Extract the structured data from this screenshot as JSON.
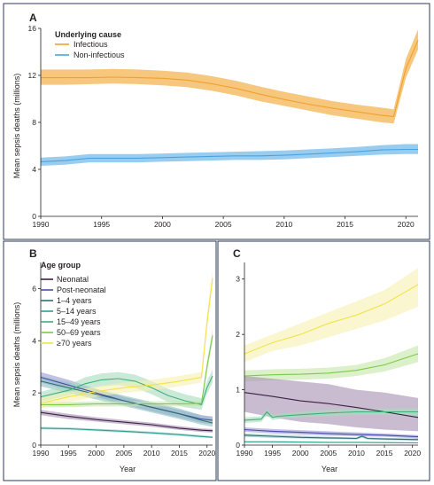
{
  "figure": {
    "panel_border_color": "#2b3a55",
    "tick_color": "#231f20"
  },
  "chart_data": [
    {
      "type": "area",
      "panel_label": "A",
      "title": "",
      "xlabel": "",
      "ylabel": "Mean sepsis deaths (millions)",
      "xlim": [
        1990,
        2021
      ],
      "ylim": [
        0,
        16
      ],
      "xticks": [
        1990,
        1995,
        2000,
        2005,
        2010,
        2015,
        2020
      ],
      "yticks": [
        0,
        4,
        8,
        12,
        16
      ],
      "legend": {
        "title": "Underlying cause",
        "placement": "top-left"
      },
      "series": [
        {
          "name": "Infectious",
          "color": "#f0a030",
          "band_color": "#f5c16e",
          "x": [
            1990,
            1992,
            1994,
            1996,
            1998,
            2000,
            2002,
            2004,
            2006,
            2008,
            2010,
            2012,
            2014,
            2016,
            2018,
            2019,
            2020,
            2021
          ],
          "values": [
            11.8,
            11.8,
            11.8,
            11.85,
            11.8,
            11.75,
            11.6,
            11.3,
            10.9,
            10.4,
            9.95,
            9.55,
            9.2,
            8.9,
            8.6,
            8.5,
            12.6,
            15.0
          ],
          "lower": [
            11.2,
            11.2,
            11.25,
            11.3,
            11.25,
            11.15,
            11.0,
            10.7,
            10.3,
            9.8,
            9.4,
            9.0,
            8.6,
            8.3,
            8.0,
            7.9,
            11.8,
            14.2
          ],
          "upper": [
            12.5,
            12.5,
            12.5,
            12.55,
            12.5,
            12.4,
            12.25,
            11.95,
            11.55,
            11.05,
            10.6,
            10.2,
            9.8,
            9.5,
            9.25,
            9.1,
            13.4,
            15.9
          ]
        },
        {
          "name": "Non-infectious",
          "color": "#4aa3df",
          "band_color": "#8ec8ee",
          "x": [
            1990,
            1992,
            1994,
            1996,
            1998,
            2000,
            2002,
            2004,
            2006,
            2008,
            2010,
            2012,
            2014,
            2016,
            2018,
            2020,
            2021
          ],
          "values": [
            4.65,
            4.75,
            4.95,
            4.95,
            4.95,
            5.0,
            5.05,
            5.1,
            5.15,
            5.15,
            5.2,
            5.3,
            5.4,
            5.5,
            5.65,
            5.7,
            5.7
          ],
          "lower": [
            4.3,
            4.4,
            4.6,
            4.6,
            4.6,
            4.65,
            4.7,
            4.75,
            4.8,
            4.8,
            4.85,
            4.95,
            5.05,
            5.15,
            5.25,
            5.3,
            5.3
          ],
          "upper": [
            5.0,
            5.1,
            5.3,
            5.3,
            5.3,
            5.35,
            5.4,
            5.45,
            5.5,
            5.55,
            5.6,
            5.7,
            5.8,
            5.9,
            6.05,
            6.15,
            6.15
          ]
        }
      ]
    },
    {
      "type": "area",
      "panel_label": "B",
      "title": "",
      "xlabel": "Year",
      "ylabel": "Mean sepsis deaths (millions)",
      "xlim": [
        1990,
        2021
      ],
      "ylim": [
        0,
        7
      ],
      "xticks": [
        1990,
        1995,
        2000,
        2005,
        2010,
        2015,
        2020
      ],
      "yticks": [
        0,
        2,
        4,
        6
      ],
      "legend": {
        "title": "Age group",
        "placement": "top-left"
      },
      "series": [
        {
          "name": "Neonatal",
          "color": "#3d1f45",
          "band_color": "#a58fb0",
          "x": [
            1990,
            1995,
            2000,
            2005,
            2010,
            2015,
            2019,
            2021
          ],
          "values": [
            1.25,
            1.1,
            0.98,
            0.88,
            0.78,
            0.65,
            0.57,
            0.55
          ],
          "lower": [
            1.15,
            1.0,
            0.9,
            0.8,
            0.7,
            0.58,
            0.5,
            0.48
          ],
          "upper": [
            1.35,
            1.2,
            1.07,
            0.96,
            0.86,
            0.73,
            0.64,
            0.62
          ]
        },
        {
          "name": "Post-neonatal",
          "color": "#4b4ba8",
          "band_color": "#9a9ad6",
          "x": [
            1990,
            1995,
            2000,
            2005,
            2010,
            2015,
            2019,
            2021
          ],
          "values": [
            2.6,
            2.3,
            2.0,
            1.7,
            1.45,
            1.2,
            1.0,
            0.95
          ],
          "lower": [
            2.4,
            2.1,
            1.85,
            1.55,
            1.3,
            1.05,
            0.85,
            0.8
          ],
          "upper": [
            2.8,
            2.5,
            2.15,
            1.85,
            1.6,
            1.35,
            1.15,
            1.1
          ]
        },
        {
          "name": "1–4 years",
          "color": "#2f6f73",
          "band_color": "#8cbfc1",
          "x": [
            1990,
            1995,
            2000,
            2005,
            2010,
            2015,
            2019,
            2021
          ],
          "values": [
            2.45,
            2.2,
            1.95,
            1.7,
            1.45,
            1.2,
            0.95,
            0.85
          ],
          "lower": [
            2.25,
            2.0,
            1.75,
            1.5,
            1.25,
            1.0,
            0.78,
            0.7
          ],
          "upper": [
            2.65,
            2.4,
            2.15,
            1.9,
            1.65,
            1.4,
            1.15,
            1.05
          ]
        },
        {
          "name": "5–14 years",
          "color": "#2e9e8f",
          "band_color": "#92d1c8",
          "x": [
            1990,
            1995,
            2000,
            2005,
            2010,
            2015,
            2019,
            2021
          ],
          "values": [
            0.65,
            0.63,
            0.58,
            0.53,
            0.47,
            0.4,
            0.33,
            0.3
          ],
          "lower": [
            0.6,
            0.58,
            0.53,
            0.48,
            0.42,
            0.35,
            0.29,
            0.26
          ],
          "upper": [
            0.7,
            0.68,
            0.63,
            0.58,
            0.52,
            0.45,
            0.38,
            0.34
          ]
        },
        {
          "name": "15–49 years",
          "color": "#3db07a",
          "band_color": "#a6dcbc",
          "x": [
            1990,
            1995,
            1998,
            2001,
            2004,
            2007,
            2010,
            2013,
            2016,
            2019,
            2020,
            2021
          ],
          "values": [
            1.85,
            2.1,
            2.35,
            2.5,
            2.55,
            2.45,
            2.2,
            1.9,
            1.7,
            1.55,
            2.2,
            2.65
          ],
          "lower": [
            1.65,
            1.9,
            2.1,
            2.25,
            2.3,
            2.2,
            1.95,
            1.65,
            1.45,
            1.35,
            1.95,
            2.4
          ],
          "upper": [
            2.05,
            2.3,
            2.6,
            2.75,
            2.8,
            2.7,
            2.45,
            2.15,
            1.95,
            1.8,
            2.45,
            2.9
          ]
        },
        {
          "name": "50–69 years",
          "color": "#7cc94a",
          "band_color": "#c4e6a8",
          "x": [
            1990,
            1995,
            2000,
            2005,
            2010,
            2015,
            2019,
            2020,
            2021
          ],
          "values": [
            1.55,
            1.55,
            1.58,
            1.58,
            1.58,
            1.58,
            1.6,
            3.0,
            4.2
          ],
          "lower": [
            1.45,
            1.45,
            1.48,
            1.48,
            1.48,
            1.48,
            1.5,
            2.8,
            3.95
          ],
          "upper": [
            1.65,
            1.65,
            1.68,
            1.68,
            1.68,
            1.68,
            1.7,
            3.2,
            4.45
          ]
        },
        {
          "name": "≥70 years",
          "color": "#f2e34a",
          "band_color": "#f7f0b0",
          "x": [
            1990,
            1995,
            2000,
            2005,
            2010,
            2015,
            2019,
            2020,
            2021
          ],
          "values": [
            1.6,
            1.85,
            2.05,
            2.2,
            2.3,
            2.45,
            2.6,
            4.7,
            6.4
          ],
          "lower": [
            1.4,
            1.65,
            1.85,
            2.0,
            2.1,
            2.25,
            2.4,
            4.4,
            6.1
          ],
          "upper": [
            1.8,
            2.05,
            2.25,
            2.4,
            2.5,
            2.65,
            2.8,
            5.0,
            6.7
          ]
        }
      ]
    },
    {
      "type": "area",
      "panel_label": "C",
      "title": "",
      "xlabel": "Year",
      "ylabel": "",
      "xlim": [
        1990,
        2021
      ],
      "ylim": [
        0,
        3.3
      ],
      "xticks": [
        1990,
        1995,
        2000,
        2005,
        2010,
        2015,
        2020
      ],
      "yticks": [
        0,
        1,
        2,
        3
      ],
      "series": [
        {
          "name": "≥70 years",
          "color": "#f2e34a",
          "band_color": "#f7f0b0",
          "x": [
            1990,
            1995,
            2000,
            2005,
            2010,
            2015,
            2021
          ],
          "values": [
            1.65,
            1.85,
            2.0,
            2.2,
            2.35,
            2.55,
            2.9
          ],
          "lower": [
            1.5,
            1.7,
            1.8,
            1.95,
            2.1,
            2.25,
            2.5
          ],
          "upper": [
            1.8,
            2.0,
            2.2,
            2.4,
            2.6,
            2.8,
            3.2
          ]
        },
        {
          "name": "50–69 years",
          "color": "#7cc94a",
          "band_color": "#c4e6a8",
          "x": [
            1990,
            1995,
            2000,
            2005,
            2010,
            2015,
            2021
          ],
          "values": [
            1.25,
            1.27,
            1.28,
            1.3,
            1.35,
            1.45,
            1.65
          ],
          "lower": [
            1.15,
            1.17,
            1.18,
            1.2,
            1.25,
            1.33,
            1.5
          ],
          "upper": [
            1.35,
            1.37,
            1.38,
            1.4,
            1.45,
            1.57,
            1.8
          ]
        },
        {
          "name": "Neonatal",
          "color": "#3d1f45",
          "band_color": "#a58fb0",
          "x": [
            1990,
            1995,
            2000,
            2005,
            2010,
            2015,
            2021
          ],
          "values": [
            0.95,
            0.88,
            0.8,
            0.75,
            0.68,
            0.6,
            0.5
          ],
          "lower": [
            0.6,
            0.5,
            0.42,
            0.38,
            0.32,
            0.28,
            0.25
          ],
          "upper": [
            1.25,
            1.2,
            1.15,
            1.1,
            1.0,
            0.95,
            0.85
          ]
        },
        {
          "name": "15–49 years",
          "color": "#3db07a",
          "band_color": "#a6dcbc",
          "x": [
            1990,
            1993,
            1994,
            1995,
            1996,
            2000,
            2005,
            2010,
            2015,
            2021
          ],
          "values": [
            0.45,
            0.47,
            0.6,
            0.5,
            0.52,
            0.55,
            0.58,
            0.6,
            0.6,
            0.6
          ],
          "lower": [
            0.4,
            0.42,
            0.54,
            0.45,
            0.47,
            0.5,
            0.52,
            0.54,
            0.54,
            0.53
          ],
          "upper": [
            0.5,
            0.52,
            0.66,
            0.55,
            0.57,
            0.6,
            0.64,
            0.66,
            0.66,
            0.67
          ]
        },
        {
          "name": "Post-neonatal",
          "color": "#4b4ba8",
          "band_color": "#9a9ad6",
          "x": [
            1990,
            1995,
            2000,
            2005,
            2010,
            2015,
            2021
          ],
          "values": [
            0.28,
            0.25,
            0.23,
            0.21,
            0.19,
            0.18,
            0.15
          ],
          "lower": [
            0.24,
            0.21,
            0.19,
            0.17,
            0.16,
            0.15,
            0.12
          ],
          "upper": [
            0.32,
            0.29,
            0.27,
            0.25,
            0.23,
            0.21,
            0.18
          ]
        },
        {
          "name": "1–4 years",
          "color": "#2f6f73",
          "band_color": "#8cbfc1",
          "x": [
            1990,
            1995,
            2000,
            2005,
            2010,
            2011,
            2012,
            2015,
            2021
          ],
          "values": [
            0.18,
            0.16,
            0.14,
            0.13,
            0.12,
            0.16,
            0.12,
            0.11,
            0.1
          ],
          "lower": [
            0.15,
            0.13,
            0.12,
            0.11,
            0.1,
            0.13,
            0.1,
            0.09,
            0.08
          ],
          "upper": [
            0.21,
            0.19,
            0.17,
            0.15,
            0.14,
            0.19,
            0.14,
            0.13,
            0.12
          ]
        },
        {
          "name": "5–14 years",
          "color": "#2e9e8f",
          "band_color": "#92d1c8",
          "x": [
            1990,
            1995,
            2000,
            2005,
            2010,
            2015,
            2021
          ],
          "values": [
            0.06,
            0.06,
            0.055,
            0.05,
            0.05,
            0.045,
            0.04
          ],
          "lower": [
            0.05,
            0.05,
            0.045,
            0.04,
            0.04,
            0.035,
            0.03
          ],
          "upper": [
            0.07,
            0.07,
            0.065,
            0.06,
            0.06,
            0.055,
            0.05
          ]
        }
      ]
    }
  ]
}
